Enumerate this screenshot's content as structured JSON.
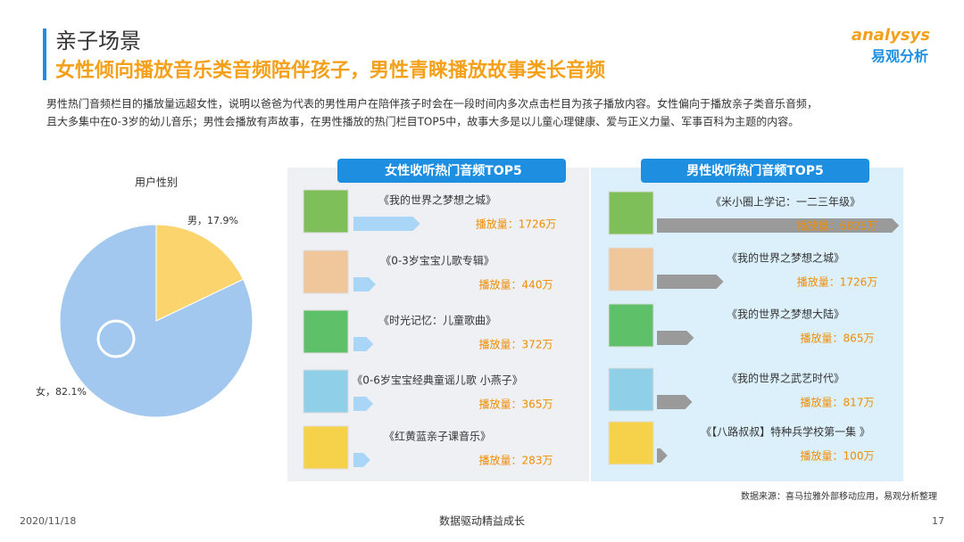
{
  "header": {
    "title": "亲子场景",
    "subtitle": "女性倾向播放音乐类音频陪伴孩子，男性青睐播放故事类长音频",
    "paragraph": [
      "男性热门音频栏目的播放量远超女性，说明以爸爸为代表的男性用户在陪伴孩子时会在一段时间内多次点击栏目为孩子播放内容。女性偏向于播放亲子类音乐音频，",
      "且大多集中在0-3岁的幼儿音乐；男性会播放有声故事，在男性播放的热门栏目TOP5中，故事大多是以儿童心理健康、爱与正义力量、军事百科为主题的内容。"
    ],
    "logo": "analysys",
    "logo_cn": "易观分析"
  },
  "chart_data": [
    {
      "type": "pie",
      "title": "用户性别",
      "values": [
        17.9,
        82.1
      ],
      "value_labels": [
        "男，17.9%",
        "女，82.1%"
      ],
      "colors": [
        "#fcd46e",
        "#a3c8f0"
      ]
    },
    {
      "type": "bar",
      "title": "女性收听热门音频TOP5",
      "categories": [
        "《我的世界之梦想之城》",
        "《0-3岁宝宝儿歌专辑》",
        "《时光记忆：儿童歌曲》",
        "《0-6岁宝宝经典童谣儿歌 小燕子》",
        "《红黄蓝亲子课音乐》"
      ],
      "values": [
        1726,
        440,
        372,
        365,
        283
      ],
      "value_labels": [
        "播放量：1726万",
        "播放量：440万",
        "播放量：372万",
        "播放量：365万",
        "播放量：283万"
      ],
      "color": "#a9d6f6",
      "xlim": [
        0,
        7000
      ]
    },
    {
      "type": "bar",
      "title": "男性收听热门音频TOP5",
      "categories": [
        "《米小圈上学记：一二三年级》",
        "《我的世界之梦想之城》",
        "《我的世界之梦想大陆》",
        "《我的世界之武艺时代》",
        "《【八路叔叔】特种兵学校第一集 》"
      ],
      "values": [
        6825,
        1726,
        865,
        817,
        100
      ],
      "value_labels": [
        "播放量：6825万",
        "播放量：1726万",
        "播放量：865万",
        "播放量：817万",
        "播放量：100万"
      ],
      "color": "#9a9a9a",
      "xlim": [
        0,
        7000
      ]
    }
  ],
  "footer": {
    "source": "数据来源：喜马拉雅外部移动应用，易观分析整理",
    "date": "2020/11/18",
    "slogan": "数据驱动精益成长",
    "page": "17"
  }
}
